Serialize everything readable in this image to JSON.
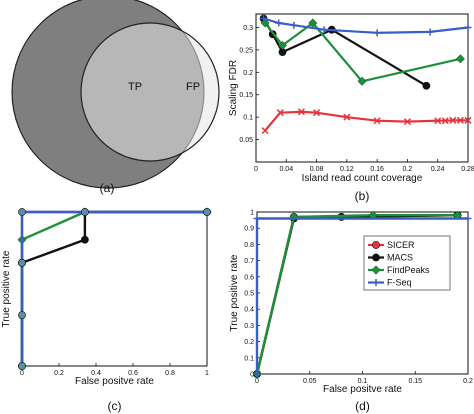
{
  "colors": {
    "sicer": "#e8323a",
    "macs": "#111111",
    "findpeaks": "#1f8f3a",
    "fseq": "#3a5dc8",
    "venn_big": "#7f7f7f",
    "venn_small": "#e6e6e6",
    "roc_c_extra": "#a040a0",
    "marker_c": "#5a8fa8"
  },
  "venn": {
    "tp_label": "TP",
    "fp_label": "FP",
    "caption": "(a)"
  },
  "chart_data": [
    {
      "panel": "b",
      "type": "line",
      "caption": "(b)",
      "xlabel": "Island  read count coverage",
      "ylabel": "Scaling FDR",
      "xlim": [
        0,
        0.28
      ],
      "ylim": [
        0,
        0.33
      ],
      "xticks": [
        "0",
        "0.04",
        "0.08",
        "0.12",
        "0.16",
        "0.2",
        "0.24",
        "0.28"
      ],
      "yticks": [
        "0.05",
        "0.1",
        "0.15",
        "0.2",
        "0.25",
        "0.3"
      ],
      "series": [
        {
          "name": "SICER",
          "color_key": "sicer",
          "marker": "x",
          "x": [
            0.012,
            0.032,
            0.06,
            0.08,
            0.12,
            0.16,
            0.2,
            0.24,
            0.25,
            0.26,
            0.27,
            0.28
          ],
          "y": [
            0.07,
            0.11,
            0.112,
            0.11,
            0.1,
            0.092,
            0.09,
            0.092,
            0.092,
            0.093,
            0.093,
            0.093
          ]
        },
        {
          "name": "MACS",
          "color_key": "macs",
          "marker": "o",
          "x": [
            0.01,
            0.022,
            0.035,
            0.1,
            0.225
          ],
          "y": [
            0.32,
            0.285,
            0.245,
            0.295,
            0.17
          ]
        },
        {
          "name": "FindPeaks",
          "color_key": "findpeaks",
          "marker": "d",
          "x": [
            0.012,
            0.035,
            0.075,
            0.14,
            0.27
          ],
          "y": [
            0.31,
            0.26,
            0.31,
            0.18,
            0.23
          ]
        },
        {
          "name": "F-Seq",
          "color_key": "fseq",
          "marker": "+",
          "x": [
            0.01,
            0.03,
            0.05,
            0.09,
            0.16,
            0.23,
            0.28
          ],
          "y": [
            0.32,
            0.31,
            0.305,
            0.295,
            0.288,
            0.29,
            0.3
          ]
        }
      ]
    },
    {
      "panel": "c",
      "type": "line",
      "caption": "(c)",
      "xlabel": "False positve rate",
      "ylabel": "True positive rate",
      "xlim": [
        0,
        1
      ],
      "ylim": [
        0,
        1
      ],
      "xticks": [
        "0",
        "0.2",
        "0.4",
        "0.6",
        "0.8",
        "1"
      ],
      "yticks": [],
      "series": [
        {
          "color_key": "roc_c_extra",
          "marker": "none",
          "x": [
            0,
            0,
            1
          ],
          "y": [
            0,
            1,
            1
          ]
        },
        {
          "color_key": "macs",
          "marker": "o",
          "x": [
            0,
            0,
            0.34,
            0.34,
            1
          ],
          "y": [
            0,
            0.67,
            0.82,
            1,
            1
          ]
        },
        {
          "color_key": "findpeaks",
          "marker": "d",
          "x": [
            0,
            0,
            0.34,
            1
          ],
          "y": [
            0,
            0.82,
            1,
            1
          ]
        },
        {
          "color_key": "fseq",
          "marker": "none",
          "x": [
            0,
            0,
            1
          ],
          "y": [
            0,
            1,
            1
          ]
        },
        {
          "color_key": "marker_c",
          "marker": "o",
          "x": [
            0,
            0,
            0,
            0,
            0.34,
            1
          ],
          "y": [
            0,
            0.33,
            0.67,
            1,
            1,
            1
          ]
        }
      ]
    },
    {
      "panel": "d",
      "type": "line",
      "caption": "(d)",
      "xlabel": "False positve rate",
      "ylabel": "True positive rate",
      "xlim": [
        0,
        0.2
      ],
      "ylim": [
        0,
        1
      ],
      "xticks": [
        "0",
        "0.05",
        "0.1",
        "0.15",
        "0.2"
      ],
      "yticks": [
        "0",
        "0.1",
        "0.2",
        "0.3",
        "0.4",
        "0.5",
        "0.6",
        "0.7",
        "0.8",
        "0.9",
        "1"
      ],
      "legend": {
        "placement": "center-right",
        "entries": [
          "SICER",
          "MACS",
          "FindPeaks",
          "F-Seq"
        ]
      },
      "series": [
        {
          "name": "SICER",
          "color_key": "sicer",
          "marker": "o",
          "x": [
            0,
            0.035,
            0.08,
            0.19
          ],
          "y": [
            0,
            0.97,
            0.97,
            0.98
          ]
        },
        {
          "name": "MACS",
          "color_key": "macs",
          "marker": "o",
          "x": [
            0,
            0.035,
            0.08,
            0.19
          ],
          "y": [
            0,
            0.96,
            0.97,
            0.98
          ]
        },
        {
          "name": "FindPeaks",
          "color_key": "findpeaks",
          "marker": "d",
          "x": [
            0,
            0.035,
            0.11,
            0.19
          ],
          "y": [
            0,
            0.97,
            0.98,
            0.98
          ]
        },
        {
          "name": "F-Seq",
          "color_key": "fseq",
          "marker": "+",
          "x": [
            0,
            0,
            0.2
          ],
          "y": [
            0,
            0.96,
            0.96
          ]
        }
      ]
    }
  ]
}
